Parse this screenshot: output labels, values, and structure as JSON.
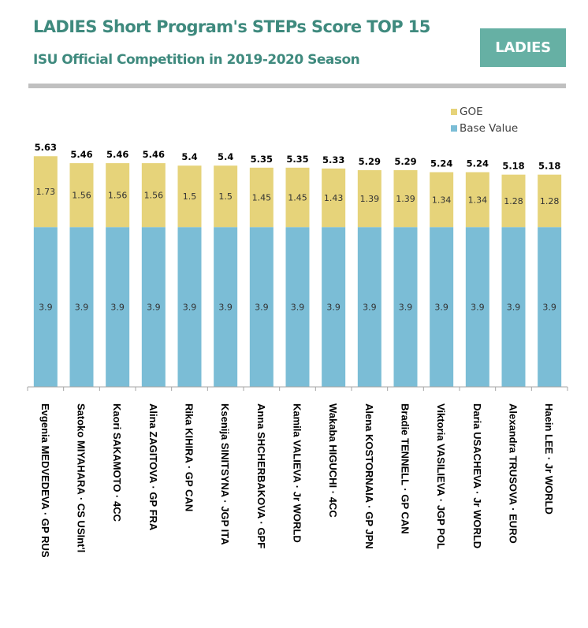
{
  "header": {
    "title": "LADIES Short Program's STEPs Score TOP 15",
    "subtitle": "ISU Official Competition in 2019-2020 Season",
    "badge": "LADIES"
  },
  "colors": {
    "title": "#3f8a7e",
    "badge": "#66b0a4",
    "goe": "#e6d37a",
    "base": "#7bbdd6",
    "divider": "#c0c0c0"
  },
  "legend": [
    {
      "name": "GOE",
      "color": "#e6d37a"
    },
    {
      "name": "Base Value",
      "color": "#7bbdd6"
    }
  ],
  "chart_data": {
    "type": "bar",
    "stacked": true,
    "title": "LADIES Short Program's STEPs Score TOP 15",
    "subtitle": "ISU Official Competition in 2019-2020 Season",
    "xlabel": "",
    "ylabel": "",
    "ylim": [
      0,
      5.63
    ],
    "grid": false,
    "legend_position": "top-right",
    "categories": [
      "Evgenia MEDVEDEVA · GP RUS",
      "Satoko MIYAHARA · CS USInt'l",
      "Kaori SAKAMOTO · 4CC",
      "Alina ZAGITOVA · GP FRA",
      "Rika KIHIRA · GP CAN",
      "Ksenija SINITSYNA · JGP ITA",
      "Anna SHCHERBAKOVA · GPF",
      "Kamila VALIEVA · Jr WORLD",
      "Wakaba HIGUCHI · 4CC",
      "Alena KOSTORNAIA · GP JPN",
      "Bradie TENNELL · GP CAN",
      "Viktoria VASILIEVA · JGP POL",
      "Daria USACHEVA · Jr WORLD",
      "Alexandra TRUSOVA · EURO",
      "Haein LEE · Jr WORLD"
    ],
    "series": [
      {
        "name": "Base Value",
        "values": [
          3.9,
          3.9,
          3.9,
          3.9,
          3.9,
          3.9,
          3.9,
          3.9,
          3.9,
          3.9,
          3.9,
          3.9,
          3.9,
          3.9,
          3.9
        ]
      },
      {
        "name": "GOE",
        "values": [
          1.73,
          1.56,
          1.56,
          1.56,
          1.5,
          1.5,
          1.45,
          1.45,
          1.43,
          1.39,
          1.39,
          1.34,
          1.34,
          1.28,
          1.28
        ]
      }
    ],
    "totals": [
      "5.63",
      "5.46",
      "5.46",
      "5.46",
      "5.4",
      "5.4",
      "5.35",
      "5.35",
      "5.33",
      "5.29",
      "5.29",
      "5.24",
      "5.24",
      "5.18",
      "5.18"
    ],
    "base_labels": [
      "3.9",
      "3.9",
      "3.9",
      "3.9",
      "3.9",
      "3.9",
      "3.9",
      "3.9",
      "3.9",
      "3.9",
      "3.9",
      "3.9",
      "3.9",
      "3.9",
      "3.9"
    ],
    "goe_labels": [
      "1.73",
      "1.56",
      "1.56",
      "1.56",
      "1.5",
      "1.5",
      "1.45",
      "1.45",
      "1.43",
      "1.39",
      "1.39",
      "1.34",
      "1.34",
      "1.28",
      "1.28"
    ]
  }
}
